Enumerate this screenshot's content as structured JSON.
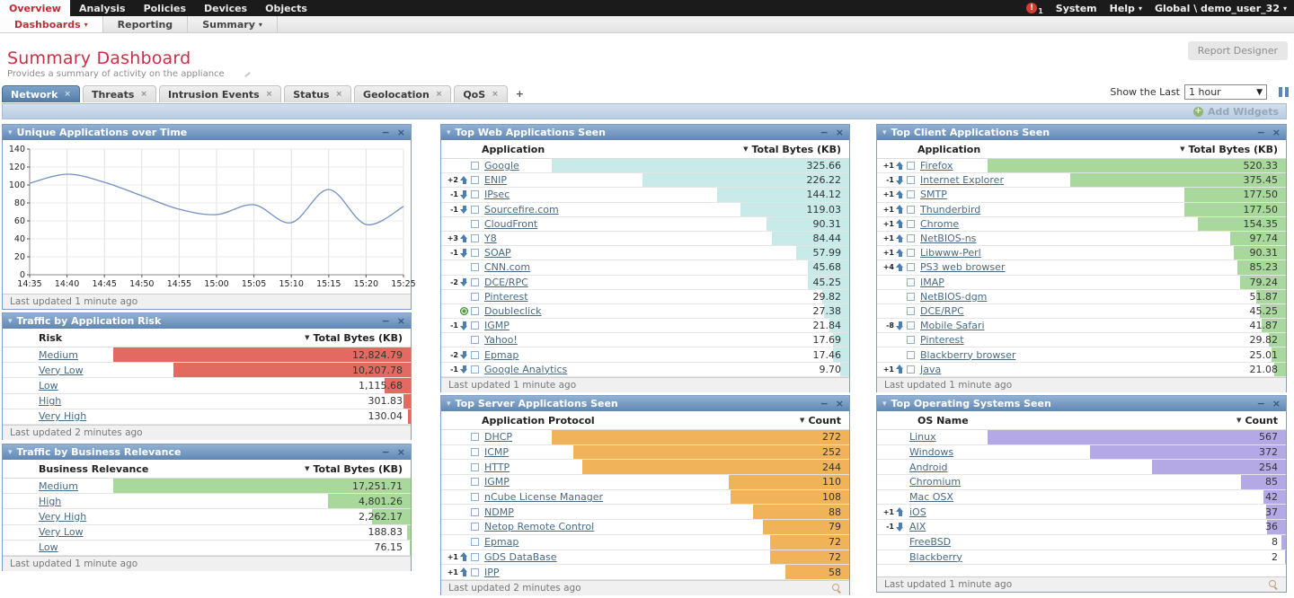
{
  "topnav": {
    "items": [
      {
        "label": "Overview",
        "active": true
      },
      {
        "label": "Analysis",
        "active": false
      },
      {
        "label": "Policies",
        "active": false
      },
      {
        "label": "Devices",
        "active": false
      },
      {
        "label": "Objects",
        "active": false
      }
    ],
    "alert_count": "1",
    "system_label": "System",
    "help_label": "Help",
    "user_label": "Global \\ demo_user_32"
  },
  "subnav": {
    "items": [
      {
        "label": "Dashboards",
        "caret": true,
        "active": true
      },
      {
        "label": "Reporting",
        "caret": false,
        "active": false
      },
      {
        "label": "Summary",
        "caret": true,
        "active": false
      }
    ]
  },
  "page": {
    "title": "Summary Dashboard",
    "subtitle": "Provides a summary of activity on the appliance",
    "report_designer": "Report Designer",
    "show_last_label": "Show the Last",
    "time_range": "1 hour",
    "add_widgets": "Add Widgets",
    "new_tab_label": "+"
  },
  "tabs": [
    {
      "label": "Network",
      "active": true
    },
    {
      "label": "Threats",
      "active": false
    },
    {
      "label": "Intrusion Events",
      "active": false
    },
    {
      "label": "Status",
      "active": false
    },
    {
      "label": "Geolocation",
      "active": false
    },
    {
      "label": "QoS",
      "active": false
    }
  ],
  "chart_data": {
    "type": "line",
    "title": "Unique Applications over Time",
    "x": [
      "14:35",
      "14:40",
      "14:45",
      "14:50",
      "14:55",
      "15:00",
      "15:05",
      "15:10",
      "15:15",
      "15:20",
      "15:25"
    ],
    "values": [
      102,
      112,
      103,
      88,
      73,
      67,
      78,
      58,
      95,
      56,
      76
    ],
    "xlabel": "",
    "ylabel": "",
    "ylim": [
      0,
      140
    ],
    "yticks": [
      0,
      20,
      40,
      60,
      80,
      100,
      120,
      140
    ],
    "grid": true,
    "line_color": "#7191c2"
  },
  "widgets": {
    "unique_apps": {
      "title": "Unique Applications over Time",
      "footer": "Last updated 1 minute ago",
      "magnifier": false
    },
    "app_risk": {
      "title": "Traffic by Application Risk",
      "col1": "Risk",
      "col2": "Total Bytes (KB)",
      "footer": "Last updated 2 minutes ago",
      "bar_color": "#e26a61",
      "magnifier": false,
      "rows": [
        {
          "change": "",
          "label": "Medium",
          "value": "12,824.79"
        },
        {
          "change": "",
          "label": "Very Low",
          "value": "10,207.78"
        },
        {
          "change": "",
          "label": "Low",
          "value": "1,115.68"
        },
        {
          "change": "",
          "label": "High",
          "value": "301.83"
        },
        {
          "change": "",
          "label": "Very High",
          "value": "130.04"
        }
      ]
    },
    "biz_rel": {
      "title": "Traffic by Business Relevance",
      "col1": "Business Relevance",
      "col2": "Total Bytes (KB)",
      "footer": "Last updated 1 minute ago",
      "bar_color": "#a9d89d",
      "magnifier": false,
      "rows": [
        {
          "change": "",
          "label": "Medium",
          "value": "17,251.71"
        },
        {
          "change": "",
          "label": "High",
          "value": "4,801.26"
        },
        {
          "change": "",
          "label": "Very High",
          "value": "2,262.17"
        },
        {
          "change": "",
          "label": "Very Low",
          "value": "188.83"
        },
        {
          "change": "",
          "label": "Low",
          "value": "76.15"
        }
      ]
    },
    "web_apps": {
      "title": "Top Web Applications Seen",
      "col1": "Application",
      "col2": "Total Bytes (KB)",
      "footer": "Last updated 1 minute ago",
      "bar_color": "#c8ebe9",
      "magnifier": false,
      "rows": [
        {
          "change": "",
          "label": "Google",
          "value": "325.66"
        },
        {
          "change": "+2",
          "label": "ENIP",
          "value": "226.22"
        },
        {
          "change": "-1",
          "label": "IPsec",
          "value": "144.12"
        },
        {
          "change": "-1",
          "label": "Sourcefire.com",
          "value": "119.03"
        },
        {
          "change": "",
          "label": "CloudFront",
          "value": "90.31"
        },
        {
          "change": "+3",
          "label": "Y8",
          "value": "84.44"
        },
        {
          "change": "-1",
          "label": "SOAP",
          "value": "57.99"
        },
        {
          "change": "",
          "label": "CNN.com",
          "value": "45.68"
        },
        {
          "change": "-2",
          "label": "DCE/RPC",
          "value": "45.25"
        },
        {
          "change": "",
          "label": "Pinterest",
          "value": "29.82"
        },
        {
          "change": "new",
          "label": "Doubleclick",
          "value": "27.38"
        },
        {
          "change": "-1",
          "label": "IGMP",
          "value": "21.84"
        },
        {
          "change": "",
          "label": "Yahoo!",
          "value": "17.69"
        },
        {
          "change": "-2",
          "label": "Epmap",
          "value": "17.46"
        },
        {
          "change": "-1",
          "label": "Google Analytics",
          "value": "9.70"
        }
      ]
    },
    "server_apps": {
      "title": "Top Server Applications Seen",
      "col1": "Application Protocol",
      "col2": "Count",
      "footer": "Last updated 2 minutes ago",
      "bar_color": "#f0b35a",
      "magnifier": true,
      "rows": [
        {
          "change": "",
          "label": "DHCP",
          "value": "272"
        },
        {
          "change": "",
          "label": "ICMP",
          "value": "252"
        },
        {
          "change": "",
          "label": "HTTP",
          "value": "244"
        },
        {
          "change": "",
          "label": "IGMP",
          "value": "110"
        },
        {
          "change": "",
          "label": "nCube License Manager",
          "value": "108"
        },
        {
          "change": "",
          "label": "NDMP",
          "value": "88"
        },
        {
          "change": "",
          "label": "Netop Remote Control",
          "value": "79"
        },
        {
          "change": "",
          "label": "Epmap",
          "value": "72"
        },
        {
          "change": "+1",
          "label": "GDS DataBase",
          "value": "72"
        },
        {
          "change": "+1",
          "label": "IPP",
          "value": "58"
        }
      ]
    },
    "client_apps": {
      "title": "Top Client Applications Seen",
      "col1": "Application",
      "col2": "Total Bytes (KB)",
      "footer": "Last updated 1 minute ago",
      "bar_color": "#a9d89d",
      "magnifier": false,
      "rows": [
        {
          "change": "+1",
          "label": "Firefox",
          "value": "520.33"
        },
        {
          "change": "-1",
          "label": "Internet Explorer",
          "value": "375.45"
        },
        {
          "change": "+1",
          "label": "SMTP",
          "value": "177.50"
        },
        {
          "change": "+1",
          "label": "Thunderbird",
          "value": "177.50"
        },
        {
          "change": "+1",
          "label": "Chrome",
          "value": "154.35"
        },
        {
          "change": "+1",
          "label": "NetBIOS-ns",
          "value": "97.74"
        },
        {
          "change": "+1",
          "label": "Libwww-Perl",
          "value": "90.31"
        },
        {
          "change": "+4",
          "label": "PS3 web browser",
          "value": "85.23"
        },
        {
          "change": "",
          "label": "IMAP",
          "value": "79.24"
        },
        {
          "change": "",
          "label": "NetBIOS-dgm",
          "value": "51.87"
        },
        {
          "change": "",
          "label": "DCE/RPC",
          "value": "45.25"
        },
        {
          "change": "-8",
          "label": "Mobile Safari",
          "value": "41.87"
        },
        {
          "change": "",
          "label": "Pinterest",
          "value": "29.82"
        },
        {
          "change": "",
          "label": "Blackberry browser",
          "value": "25.01"
        },
        {
          "change": "+1",
          "label": "Java",
          "value": "21.08"
        }
      ]
    },
    "os_seen": {
      "title": "Top Operating Systems Seen",
      "col1": "OS Name",
      "col2": "Count",
      "footer": "Last updated 1 minute ago",
      "bar_color": "#b4a8e5",
      "magnifier": true,
      "rows": [
        {
          "change": "",
          "label": "Linux",
          "value": "567"
        },
        {
          "change": "",
          "label": "Windows",
          "value": "372"
        },
        {
          "change": "",
          "label": "Android",
          "value": "254"
        },
        {
          "change": "",
          "label": "Chromium",
          "value": "85"
        },
        {
          "change": "",
          "label": "Mac OSX",
          "value": "42"
        },
        {
          "change": "+1",
          "label": "iOS",
          "value": "37"
        },
        {
          "change": "-1",
          "label": "AIX",
          "value": "36"
        },
        {
          "change": "",
          "label": "FreeBSD",
          "value": "8"
        },
        {
          "change": "",
          "label": "Blackberry",
          "value": "2"
        }
      ]
    }
  }
}
